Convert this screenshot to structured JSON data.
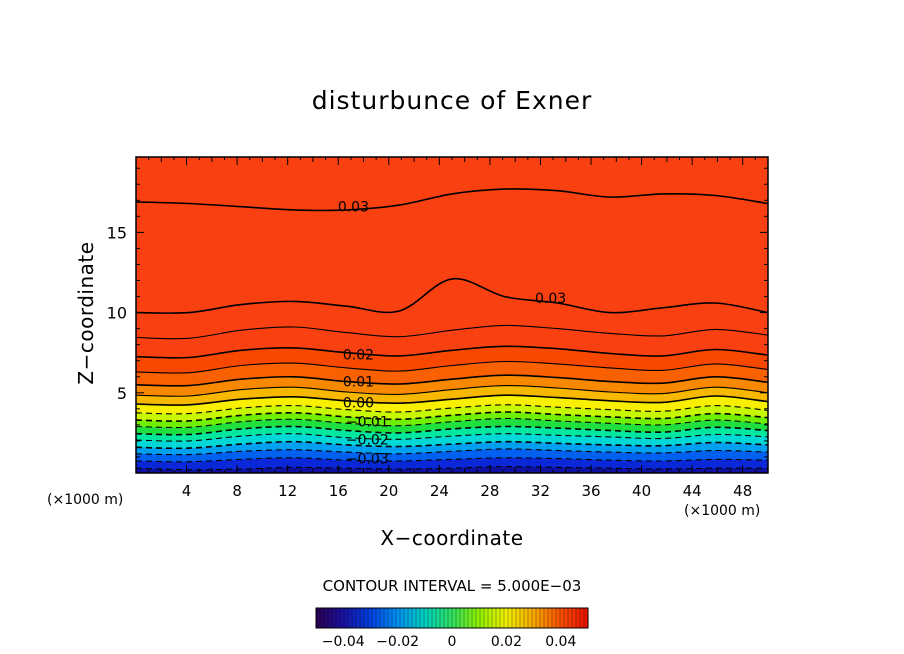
{
  "chart_data": {
    "type": "contour",
    "title": "disturbunce of Exner",
    "xlabel": "X−coordinate",
    "ylabel": "Z−coordinate",
    "x_unit_label": "(×1000 m)",
    "y_unit_label": "(×1000 m)",
    "xlim": [
      0,
      50
    ],
    "ylim": [
      0,
      19.7
    ],
    "x_ticks": [
      4,
      8,
      12,
      16,
      20,
      24,
      28,
      32,
      36,
      40,
      44,
      48
    ],
    "y_ticks": [
      5,
      10,
      15
    ],
    "contour_interval_text": "CONTOUR INTERVAL = 5.000E−03",
    "contour_interval": 0.005,
    "colorbar": {
      "range": [
        -0.05,
        0.05
      ],
      "tick_values": [
        -0.04,
        -0.02,
        0,
        0.02,
        0.04
      ],
      "tick_labels": [
        "−0.04",
        "−0.02",
        "0",
        "0.02",
        "0.04"
      ]
    },
    "contour_labels": [
      {
        "text": "0.03",
        "value": 0.03,
        "x": 17.2,
        "z": 16.6
      },
      {
        "text": "0.03",
        "value": 0.03,
        "x": 32.8,
        "z": 10.9
      },
      {
        "text": "0.02",
        "value": 0.02,
        "x": 17.6,
        "z": 7.4
      },
      {
        "text": "0.01",
        "value": 0.01,
        "x": 17.6,
        "z": 5.7
      },
      {
        "text": "0.00",
        "value": 0.0,
        "x": 17.6,
        "z": 4.4
      },
      {
        "text": "−0.01",
        "value": -0.01,
        "x": 18.3,
        "z": 3.2
      },
      {
        "text": "−0.02",
        "value": -0.02,
        "x": 18.3,
        "z": 2.1
      },
      {
        "text": "−0.03",
        "value": -0.03,
        "x": 18.3,
        "z": 0.9
      }
    ],
    "contour_levels": [
      {
        "value": -0.045,
        "style": "dashed",
        "z": [
          0.3,
          0.2,
          0.25,
          0.35,
          0.3,
          0.25,
          0.3,
          0.4,
          0.35,
          0.3,
          0.25,
          0.3,
          0.3
        ]
      },
      {
        "value": -0.04,
        "style": "dashed",
        "z": [
          0.75,
          0.7,
          0.85,
          0.95,
          0.8,
          0.75,
          0.85,
          0.95,
          0.9,
          0.8,
          0.75,
          0.85,
          0.8
        ]
      },
      {
        "value": -0.035,
        "style": "dashed",
        "z": [
          1.2,
          1.15,
          1.35,
          1.45,
          1.3,
          1.2,
          1.35,
          1.5,
          1.4,
          1.3,
          1.25,
          1.4,
          1.3
        ]
      },
      {
        "value": -0.03,
        "style": "dashed",
        "z": [
          1.6,
          1.55,
          1.8,
          1.95,
          1.75,
          1.65,
          1.8,
          1.95,
          1.85,
          1.75,
          1.7,
          1.9,
          1.75
        ]
      },
      {
        "value": -0.025,
        "style": "dashed",
        "z": [
          2.05,
          2.0,
          2.3,
          2.45,
          2.2,
          2.1,
          2.3,
          2.45,
          2.35,
          2.25,
          2.15,
          2.4,
          2.25
        ]
      },
      {
        "value": -0.02,
        "style": "dashed",
        "z": [
          2.45,
          2.4,
          2.75,
          2.9,
          2.65,
          2.5,
          2.75,
          2.9,
          2.8,
          2.65,
          2.55,
          2.85,
          2.65
        ]
      },
      {
        "value": -0.015,
        "style": "dashed",
        "z": [
          2.9,
          2.85,
          3.2,
          3.35,
          3.1,
          2.95,
          3.2,
          3.4,
          3.25,
          3.1,
          3.0,
          3.3,
          3.05
        ]
      },
      {
        "value": -0.01,
        "style": "dashed",
        "z": [
          3.3,
          3.25,
          3.6,
          3.75,
          3.5,
          3.35,
          3.6,
          3.8,
          3.65,
          3.5,
          3.4,
          3.7,
          3.45
        ]
      },
      {
        "value": -0.005,
        "style": "dashed",
        "z": [
          3.75,
          3.7,
          4.05,
          4.2,
          3.95,
          3.8,
          4.05,
          4.25,
          4.1,
          3.95,
          3.85,
          4.2,
          3.9
        ]
      },
      {
        "value": 0.0,
        "style": "solid",
        "z": [
          4.3,
          4.25,
          4.6,
          4.75,
          4.5,
          4.35,
          4.6,
          4.85,
          4.7,
          4.5,
          4.4,
          4.8,
          4.45
        ]
      },
      {
        "value": 0.005,
        "style": "solid",
        "z": [
          4.85,
          4.8,
          5.2,
          5.35,
          5.05,
          4.9,
          5.2,
          5.45,
          5.3,
          5.05,
          4.95,
          5.35,
          5.0
        ]
      },
      {
        "value": 0.01,
        "style": "solid",
        "z": [
          5.5,
          5.45,
          5.85,
          6.0,
          5.7,
          5.55,
          5.85,
          6.1,
          5.95,
          5.7,
          5.6,
          6.0,
          5.65
        ]
      },
      {
        "value": 0.015,
        "style": "solid",
        "z": [
          6.3,
          6.25,
          6.7,
          6.85,
          6.55,
          6.35,
          6.7,
          6.95,
          6.8,
          6.55,
          6.4,
          6.8,
          6.45
        ]
      },
      {
        "value": 0.02,
        "style": "solid",
        "z": [
          7.25,
          7.2,
          7.65,
          7.8,
          7.5,
          7.3,
          7.65,
          7.9,
          7.75,
          7.45,
          7.3,
          7.7,
          7.35
        ]
      },
      {
        "value": 0.025,
        "style": "solid",
        "z": [
          8.45,
          8.4,
          8.9,
          9.1,
          8.75,
          8.5,
          8.9,
          9.2,
          9.0,
          8.7,
          8.55,
          8.95,
          8.6
        ]
      },
      {
        "value": 0.03,
        "style": "solid",
        "z": [
          10.0,
          10.0,
          10.5,
          10.7,
          10.4,
          10.1,
          12.1,
          11.0,
          10.6,
          10.0,
          10.3,
          10.6,
          10.0
        ]
      },
      {
        "value": 0.03,
        "style": "solid",
        "z": [
          16.9,
          16.8,
          16.6,
          16.4,
          16.4,
          16.7,
          17.4,
          17.7,
          17.6,
          17.2,
          17.4,
          17.3,
          16.8
        ]
      }
    ]
  },
  "colors": {
    "plot_scale": [
      "#1010a0",
      "#0a28d8",
      "#0060f0",
      "#00a0f0",
      "#00d8d8",
      "#00e8a0",
      "#20e040",
      "#70f000",
      "#c8f800",
      "#f8f000",
      "#f8b800",
      "#f88800",
      "#f86000",
      "#f84800",
      "#f84010"
    ],
    "colorbar_scale": [
      "#2a0050",
      "#1a10a0",
      "#0040e0",
      "#0090f0",
      "#00d0c0",
      "#30e060",
      "#90f000",
      "#f0f000",
      "#f8a800",
      "#f85000",
      "#e81000"
    ]
  }
}
